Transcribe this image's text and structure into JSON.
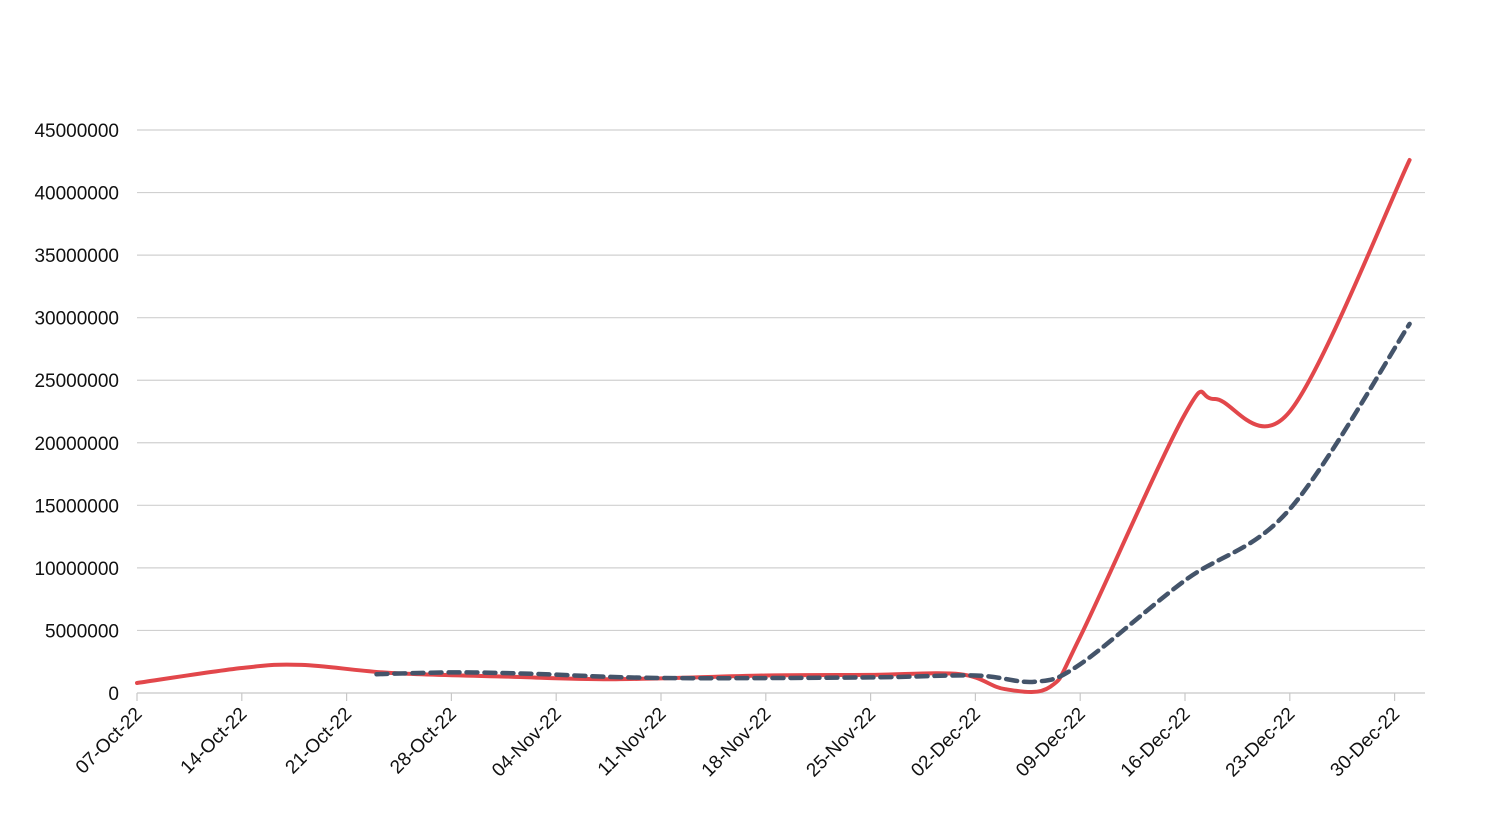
{
  "chart_data": {
    "type": "line",
    "title": "",
    "xlabel": "",
    "ylabel": "",
    "x_ticks": [
      "07-Oct-22",
      "14-Oct-22",
      "21-Oct-22",
      "28-Oct-22",
      "04-Nov-22",
      "11-Nov-22",
      "18-Nov-22",
      "25-Nov-22",
      "02-Dec-22",
      "09-Dec-22",
      "16-Dec-22",
      "23-Dec-22",
      "30-Dec-22"
    ],
    "x_range": [
      "2022-10-07",
      "2022-12-31"
    ],
    "y_ticks": [
      "0",
      "5000000",
      "10000000",
      "15000000",
      "20000000",
      "25000000",
      "30000000",
      "35000000",
      "40000000",
      "45000000"
    ],
    "ylim": [
      0,
      45000000
    ],
    "grid": true,
    "legend": "none",
    "series": [
      {
        "style": "solid",
        "color": "#e2474b",
        "points": [
          {
            "x": "2022-10-07",
            "y": 800000
          },
          {
            "x": "2022-10-14",
            "y": 2000000
          },
          {
            "x": "2022-10-18",
            "y": 2250000
          },
          {
            "x": "2022-10-24",
            "y": 1600000
          },
          {
            "x": "2022-11-01",
            "y": 1300000
          },
          {
            "x": "2022-11-08",
            "y": 1100000
          },
          {
            "x": "2022-11-18",
            "y": 1400000
          },
          {
            "x": "2022-11-25",
            "y": 1450000
          },
          {
            "x": "2022-12-01",
            "y": 1500000
          },
          {
            "x": "2022-12-04",
            "y": 300000
          },
          {
            "x": "2022-12-07",
            "y": 500000
          },
          {
            "x": "2022-12-09",
            "y": 4500000
          },
          {
            "x": "2022-12-16",
            "y": 22300000
          },
          {
            "x": "2022-12-18",
            "y": 23500000
          },
          {
            "x": "2022-12-23",
            "y": 22500000
          },
          {
            "x": "2022-12-31",
            "y": 42600000
          }
        ]
      },
      {
        "style": "dashed",
        "color": "#44546a",
        "points": [
          {
            "x": "2022-10-23",
            "y": 1500000
          },
          {
            "x": "2022-10-28",
            "y": 1650000
          },
          {
            "x": "2022-11-02",
            "y": 1550000
          },
          {
            "x": "2022-11-11",
            "y": 1200000
          },
          {
            "x": "2022-11-25",
            "y": 1250000
          },
          {
            "x": "2022-12-02",
            "y": 1400000
          },
          {
            "x": "2022-12-06",
            "y": 900000
          },
          {
            "x": "2022-12-09",
            "y": 2300000
          },
          {
            "x": "2022-12-16",
            "y": 9000000
          },
          {
            "x": "2022-12-23",
            "y": 14700000
          },
          {
            "x": "2022-12-31",
            "y": 29500000
          }
        ]
      }
    ]
  }
}
